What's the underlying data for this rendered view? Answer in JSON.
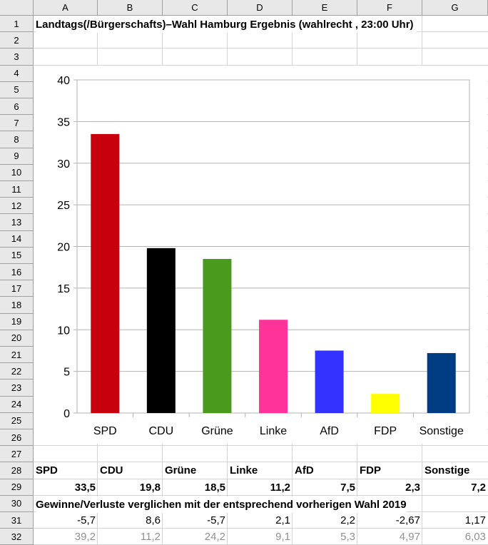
{
  "spreadsheet": {
    "columns": [
      "A",
      "B",
      "C",
      "D",
      "E",
      "F",
      "G"
    ],
    "rows": [
      "1",
      "2",
      "3",
      "4",
      "5",
      "6",
      "7",
      "8",
      "9",
      "10",
      "11",
      "12",
      "13",
      "14",
      "15",
      "16",
      "17",
      "18",
      "19",
      "20",
      "21",
      "22",
      "23",
      "24",
      "25",
      "26",
      "27",
      "28",
      "29",
      "30",
      "31",
      "32"
    ],
    "title": "Landtags(/Bürgerschafts)–Wahl Hamburg Ergebnis (wahlrecht , 23:00 Uhr)",
    "row28": [
      "SPD",
      "CDU",
      "Grüne",
      "Linke",
      "AfD",
      "FDP",
      "Sonstige"
    ],
    "row29": [
      "33,5",
      "19,8",
      "18,5",
      "11,2",
      "7,5",
      "2,3",
      "7,2"
    ],
    "row30_note": "Gewinne/Verluste verglichen mit der entsprechend vorherigen Wahl 2019",
    "row31": [
      "-5,7",
      "8,6",
      "-5,7",
      "2,1",
      "2,2",
      "-2,67",
      "1,17"
    ],
    "row32": [
      "39,2",
      "11,2",
      "24,2",
      "9,1",
      "5,3",
      "4,97",
      "6,03"
    ]
  },
  "chart_data": {
    "type": "bar",
    "categories": [
      "SPD",
      "CDU",
      "Grüne",
      "Linke",
      "AfD",
      "FDP",
      "Sonstige"
    ],
    "values": [
      33.5,
      19.8,
      18.5,
      11.2,
      7.5,
      2.3,
      7.2
    ],
    "colors": [
      "#c8000e",
      "#000000",
      "#4a9a1e",
      "#ff3399",
      "#3333ff",
      "#ffff00",
      "#003c82"
    ],
    "ylim": [
      0,
      40
    ],
    "yticks": [
      "0",
      "5",
      "10",
      "15",
      "20",
      "25",
      "30",
      "35",
      "40"
    ],
    "grid": true,
    "title": "",
    "xlabel": "",
    "ylabel": ""
  }
}
